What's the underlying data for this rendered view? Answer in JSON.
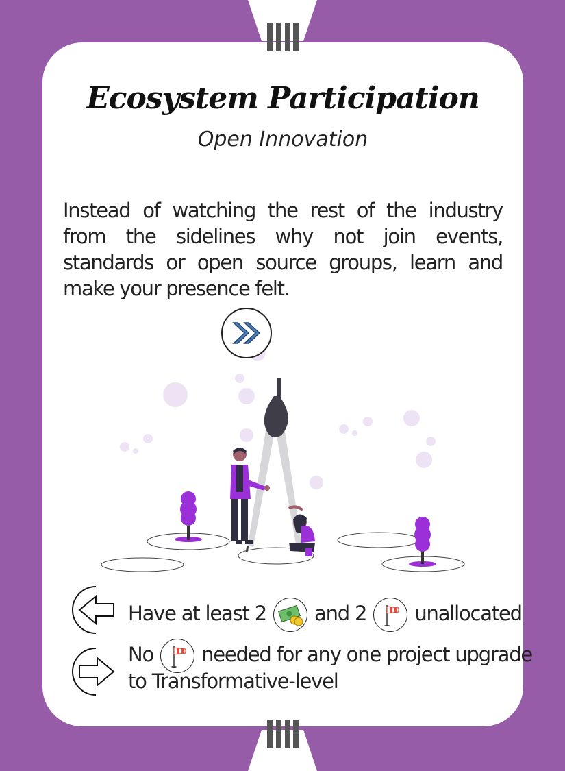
{
  "card": {
    "title": "Ecosystem Participation",
    "subtitle": "Open Innovation",
    "description": "Instead of watching the rest of the industry from the sidelines why not join events, standards or open source groups, learn and make your presence felt.",
    "level_marker": "IIII",
    "badge_icon": "double-chevron-right-icon"
  },
  "requirement": {
    "arrow_icon": "arrow-left-icon",
    "prefix": "Have at least 2",
    "middle": "and 2",
    "suffix": "unallocated",
    "icon_1": "money-coins-icon",
    "icon_2": "windsock-icon"
  },
  "effect": {
    "arrow_icon": "arrow-right-icon",
    "prefix": "No",
    "suffix": "needed for any one project upgrade",
    "line2": "to Transformative-level",
    "icon": "windsock-icon"
  },
  "colors": {
    "background": "#965ca7",
    "card": "#ffffff",
    "accent": "#9b30d9",
    "marker": "#555555"
  }
}
